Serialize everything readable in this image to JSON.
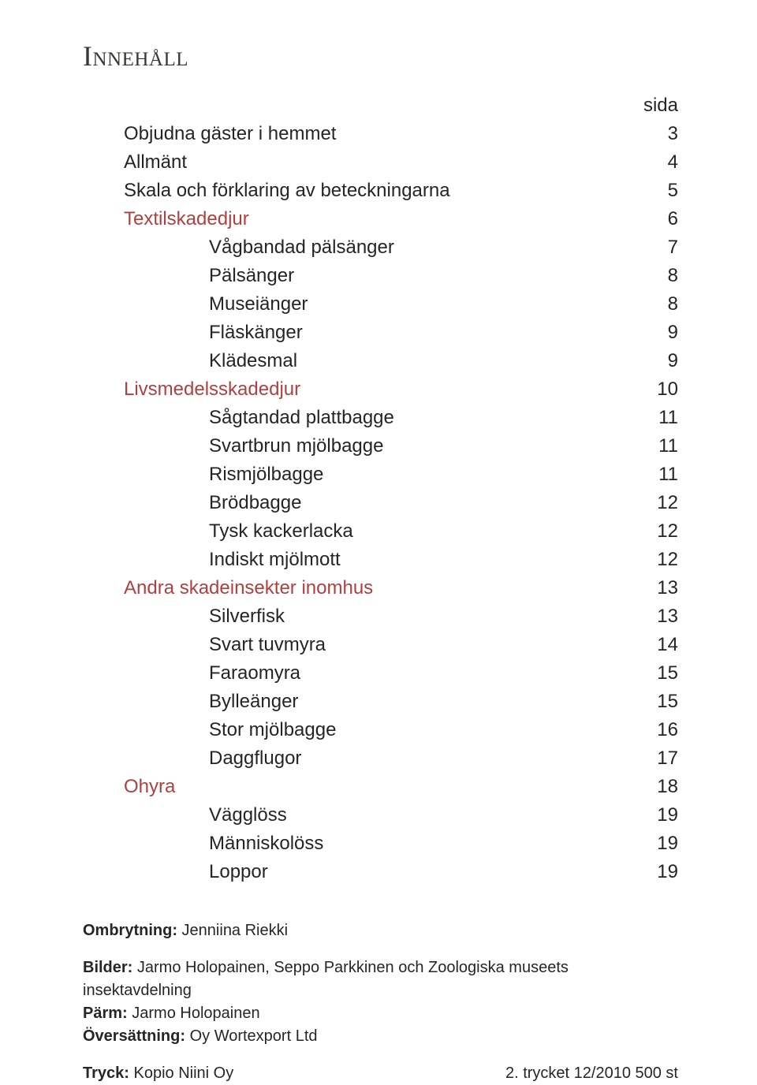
{
  "title": "Innehåll",
  "page_header": "sida",
  "colors": {
    "text": "#252525",
    "title": "#3a3632",
    "section": "#b04040",
    "background": "#ffffff"
  },
  "typography": {
    "body_family": "Arial, Helvetica, sans-serif",
    "title_family": "Georgia, Times New Roman, serif",
    "title_size_pt": 27,
    "body_size_pt": 18,
    "credits_size_pt": 15
  },
  "toc": [
    {
      "label": "Objudna gäster i hemmet",
      "page": "3",
      "indent": 1,
      "section": false
    },
    {
      "label": "Allmänt",
      "page": "4",
      "indent": 1,
      "section": false
    },
    {
      "label": "Skala och förklaring av beteckningarna",
      "page": "5",
      "indent": 1,
      "section": false
    },
    {
      "label": "Textilskadedjur",
      "page": "6",
      "indent": 1,
      "section": true
    },
    {
      "label": "Vågbandad pälsänger",
      "page": "7",
      "indent": 2,
      "section": false
    },
    {
      "label": "Pälsänger",
      "page": "8",
      "indent": 2,
      "section": false
    },
    {
      "label": "Museiänger",
      "page": "8",
      "indent": 2,
      "section": false
    },
    {
      "label": "Fläskänger",
      "page": "9",
      "indent": 2,
      "section": false
    },
    {
      "label": "Klädesmal",
      "page": "9",
      "indent": 2,
      "section": false
    },
    {
      "label": "Livsmedelsskadedjur",
      "page": "10",
      "indent": 1,
      "section": true
    },
    {
      "label": "Sågtandad plattbagge",
      "page": "11",
      "indent": 2,
      "section": false
    },
    {
      "label": "Svartbrun mjölbagge",
      "page": "11",
      "indent": 2,
      "section": false
    },
    {
      "label": "Rismjölbagge",
      "page": "11",
      "indent": 2,
      "section": false
    },
    {
      "label": "Brödbagge",
      "page": "12",
      "indent": 2,
      "section": false
    },
    {
      "label": "Tysk kackerlacka",
      "page": "12",
      "indent": 2,
      "section": false
    },
    {
      "label": "Indiskt mjölmott",
      "page": "12",
      "indent": 2,
      "section": false
    },
    {
      "label": "Andra skadeinsekter inomhus",
      "page": "13",
      "indent": 1,
      "section": true
    },
    {
      "label": "Silverfisk",
      "page": "13",
      "indent": 2,
      "section": false
    },
    {
      "label": "Svart tuvmyra",
      "page": "14",
      "indent": 2,
      "section": false
    },
    {
      "label": "Faraomyra",
      "page": "15",
      "indent": 2,
      "section": false
    },
    {
      "label": "Bylleänger",
      "page": "15",
      "indent": 2,
      "section": false
    },
    {
      "label": "Stor mjölbagge",
      "page": "16",
      "indent": 2,
      "section": false
    },
    {
      "label": "Daggflugor",
      "page": "17",
      "indent": 2,
      "section": false
    },
    {
      "label": "Ohyra",
      "page": "18",
      "indent": 1,
      "section": true
    },
    {
      "label": "Vägglöss",
      "page": "19",
      "indent": 2,
      "section": false
    },
    {
      "label": "Människolöss",
      "page": "19",
      "indent": 2,
      "section": false
    },
    {
      "label": "Loppor",
      "page": "19",
      "indent": 2,
      "section": false
    }
  ],
  "credits": {
    "ombrytning_label": "Ombrytning:",
    "ombrytning_value": " Jenniina Riekki",
    "bilder_label": "Bilder:",
    "bilder_value": " Jarmo Holopainen, Seppo Parkkinen och Zoologiska museets insektavdelning",
    "parm_label": "Pärm:",
    "parm_value": " Jarmo Holopainen",
    "oversattning_label": "Översättning:",
    "oversattning_value": " Oy Wortexport Ltd",
    "tryck_label": "Tryck:",
    "tryck_value": " Kopio Niini Oy",
    "print_run": "2. trycket 12/2010 500 st"
  }
}
